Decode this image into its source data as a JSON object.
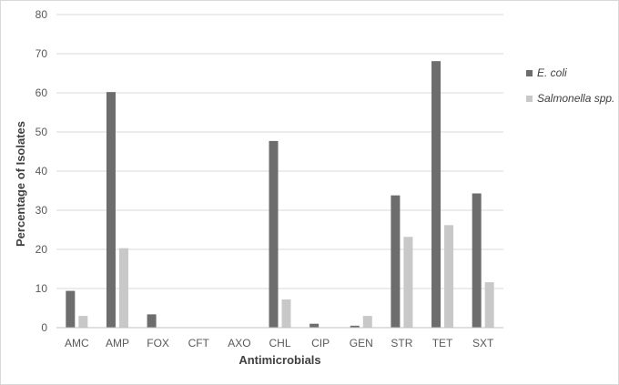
{
  "chart_data": {
    "type": "bar",
    "title": "",
    "xlabel": "Antimicrobials",
    "ylabel": "Percentage of Isolates",
    "ylim": [
      0,
      80
    ],
    "yticks": [
      0,
      10,
      20,
      30,
      40,
      50,
      60,
      70,
      80
    ],
    "grid": true,
    "legend_position": "right",
    "categories": [
      "AMC",
      "AMP",
      "FOX",
      "CFT",
      "AXO",
      "CHL",
      "CIP",
      "GEN",
      "STR",
      "TET",
      "SXT"
    ],
    "series": [
      {
        "name": "E. coli",
        "color": "#6d6d6d",
        "values": [
          9.4,
          60.2,
          3.4,
          0,
          0,
          47.7,
          1.0,
          0.5,
          33.8,
          68.1,
          34.3
        ]
      },
      {
        "name": "Salmonella spp.",
        "color": "#c8c8c8",
        "values": [
          3.0,
          20.3,
          0,
          0,
          0,
          7.2,
          0,
          3.0,
          23.2,
          26.2,
          11.6
        ]
      }
    ]
  }
}
